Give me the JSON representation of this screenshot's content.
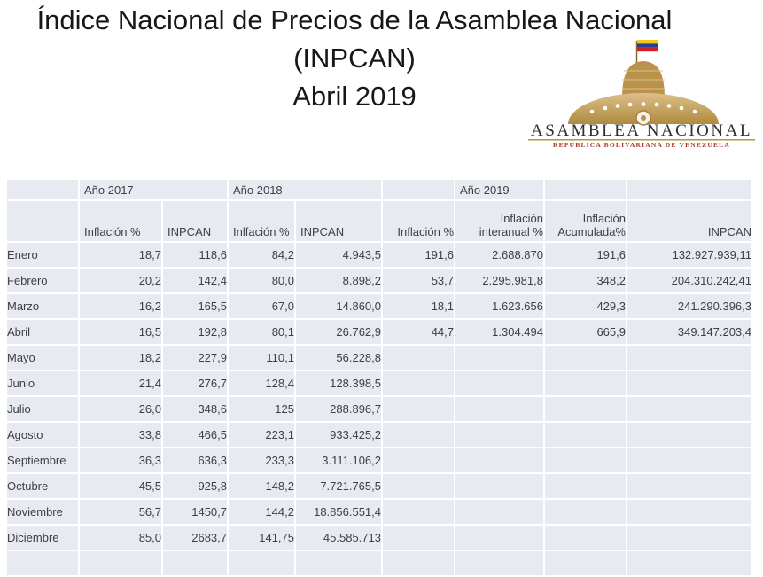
{
  "page": {
    "background": "#ffffff"
  },
  "title": {
    "line1": "Índice Nacional de Precios de la Asamblea Nacional",
    "line2": "(INPCAN)",
    "line3": "Abril 2019"
  },
  "logo": {
    "org": "ASAMBLEA NACIONAL",
    "subtitle": "REPÚBLICA BOLIVARIANA DE VENEZUELA",
    "colors": {
      "gold": "#b8953e",
      "gold_light": "#dcc08a",
      "gold_dark": "#a57d33",
      "org_text": "#2e2e2e",
      "subtitle_red": "#a63a32",
      "flag_yellow": "#f3c817",
      "flag_blue": "#273a9e",
      "flag_red": "#cf2027"
    }
  },
  "table": {
    "colors": {
      "cell_bg": "#e7eaf1",
      "grid": "#ffffff",
      "text": "#3d3f42"
    },
    "year_headers": {
      "y2017": "Año 2017",
      "y2018": "Año 2018",
      "y2019": "Año 2019"
    },
    "column_headers": {
      "c2": "Inflación %",
      "c3": "INPCAN",
      "c4": "Inlfación %",
      "c5": "INPCAN",
      "c6": "Inflación %",
      "c7": "Inflación interanual %",
      "c8": "Inflación Acumulada%",
      "c9": "INPCAN"
    },
    "rows": [
      {
        "month": "Enero",
        "values": [
          "18,7",
          "118,6",
          "84,2",
          "4.943,5",
          "191,6",
          "2.688.870",
          "191,6",
          "132.927.939,11"
        ]
      },
      {
        "month": "Febrero",
        "values": [
          "20,2",
          "142,4",
          "80,0",
          "8.898,2",
          "53,7",
          "2.295.981,8",
          "348,2",
          "204.310.242,41"
        ]
      },
      {
        "month": "Marzo",
        "values": [
          "16,2",
          "165,5",
          "67,0",
          "14.860,0",
          "18,1",
          "1.623.656",
          "429,3",
          "241.290.396,3"
        ]
      },
      {
        "month": "Abril",
        "values": [
          "16,5",
          "192,8",
          "80,1",
          "26.762,9",
          "44,7",
          "1.304.494",
          "665,9",
          "349.147.203,4"
        ]
      },
      {
        "month": "Mayo",
        "values": [
          "18,2",
          "227,9",
          "110,1",
          "56.228,8",
          "",
          "",
          "",
          ""
        ]
      },
      {
        "month": "Junio",
        "values": [
          "21,4",
          "276,7",
          "128,4",
          "128.398,5",
          "",
          "",
          "",
          ""
        ]
      },
      {
        "month": "Julio",
        "values": [
          "26,0",
          "348,6",
          "125",
          "288.896,7",
          "",
          "",
          "",
          ""
        ]
      },
      {
        "month": "Agosto",
        "values": [
          "33,8",
          "466,5",
          "223,1",
          "933.425,2",
          "",
          "",
          "",
          ""
        ]
      },
      {
        "month": "Septiembre",
        "values": [
          "36,3",
          "636,3",
          "233,3",
          "3.111.106,2",
          "",
          "",
          "",
          ""
        ]
      },
      {
        "month": "Octubre",
        "values": [
          "45,5",
          "925,8",
          "148,2",
          "7.721.765,5",
          "",
          "",
          "",
          ""
        ]
      },
      {
        "month": "Noviembre",
        "values": [
          "56,7",
          "1450,7",
          "144,2",
          "18.856.551,4",
          "",
          "",
          "",
          ""
        ]
      },
      {
        "month": "Diciembre",
        "values": [
          "85,0",
          "2683,7",
          "141,75",
          "45.585.713",
          "",
          "",
          "",
          ""
        ]
      }
    ]
  }
}
